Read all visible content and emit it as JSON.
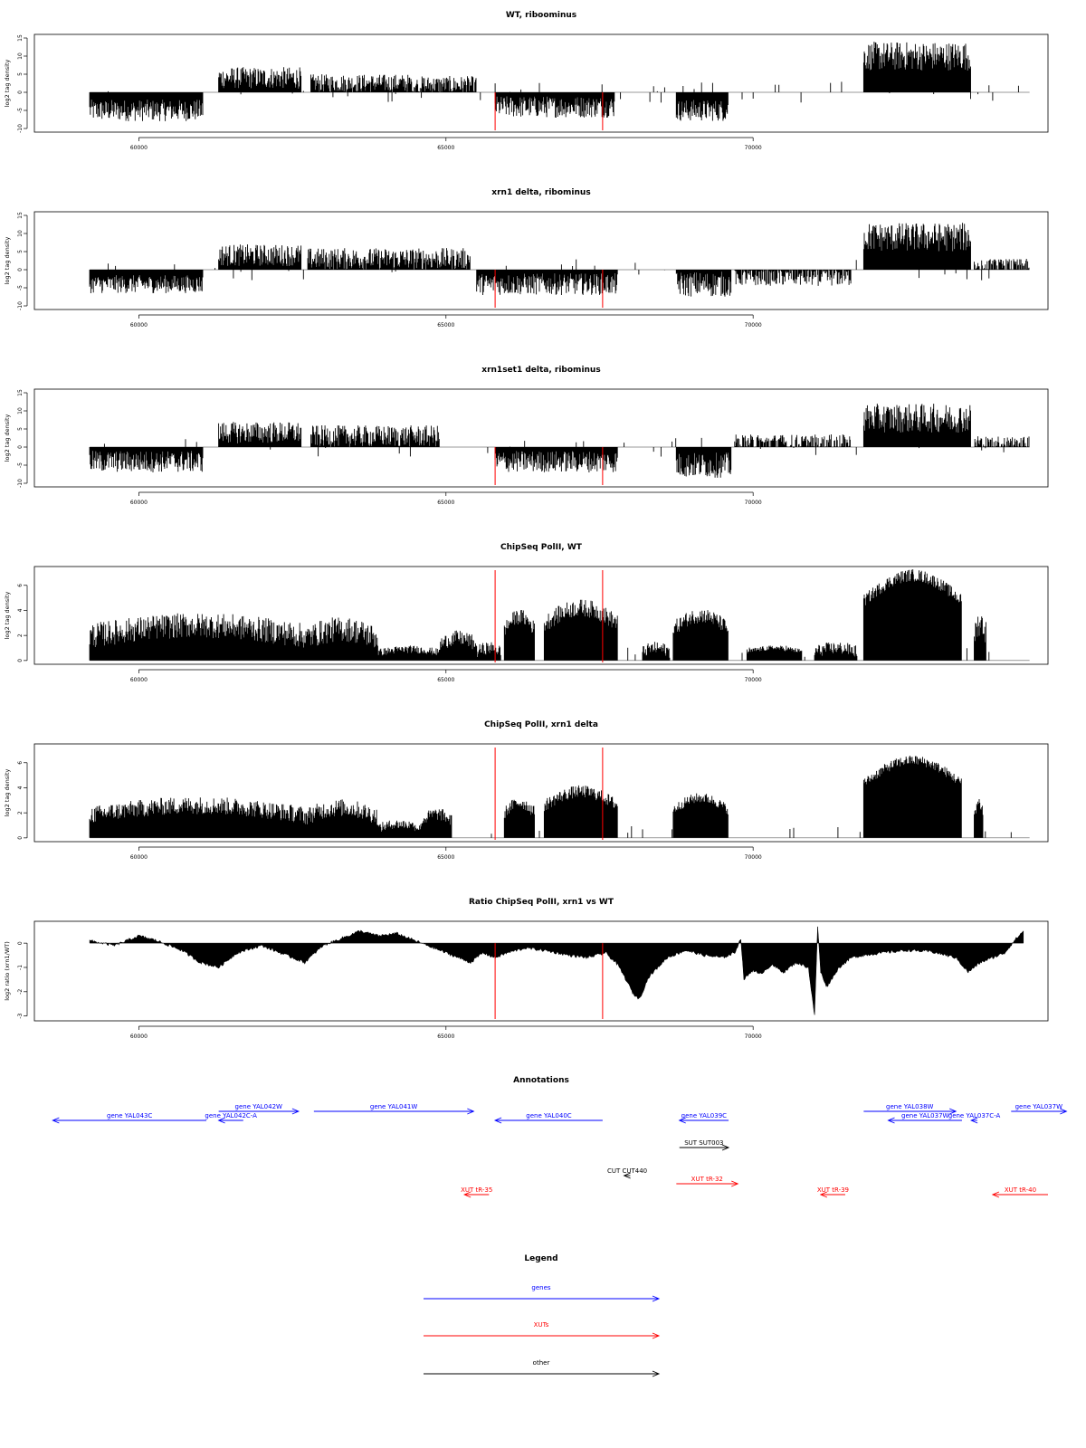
{
  "colors": {
    "signal": "#000000",
    "marker": "#ff0000",
    "genes": "#0000ff",
    "xuts": "#ff0000",
    "other": "#000000"
  },
  "chart_data": [
    {
      "type": "bar",
      "title": "WT, riboominus",
      "ylabel": "log2 tag density",
      "ylim": [
        -11,
        16
      ],
      "yticks": [
        -10,
        -5,
        0,
        5,
        10,
        15
      ],
      "xlim": [
        58300,
        74800
      ],
      "xticks": [
        60000,
        65000,
        70000
      ],
      "xtick_labels": [
        "60000",
        "65000",
        "70000"
      ],
      "markers": [
        65800,
        67550
      ],
      "segments": [
        {
          "x": [
            59200,
            61050
          ],
          "y": -5,
          "amp": 3
        },
        {
          "x": [
            61300,
            62650
          ],
          "y": 4,
          "amp": 3
        },
        {
          "x": [
            62800,
            64450
          ],
          "y": 2.5,
          "amp": 2.5
        },
        {
          "x": [
            64450,
            65500
          ],
          "y": 2,
          "amp": 2.5
        },
        {
          "x": [
            65800,
            67750
          ],
          "y": -4,
          "amp": 3
        },
        {
          "x": [
            68750,
            69600
          ],
          "y": -5,
          "amp": 3
        },
        {
          "x": [
            71800,
            73550
          ],
          "y": 10,
          "amp": 4
        }
      ]
    },
    {
      "type": "bar",
      "title": "xrn1 delta, ribominus",
      "ylabel": "log2 tag density",
      "ylim": [
        -11,
        16
      ],
      "yticks": [
        -10,
        -5,
        0,
        5,
        10,
        15
      ],
      "xlim": [
        58300,
        74800
      ],
      "xticks": [
        60000,
        65000,
        70000
      ],
      "xtick_labels": [
        "60000",
        "65000",
        "70000"
      ],
      "markers": [
        65800,
        67550
      ],
      "segments": [
        {
          "x": [
            59200,
            61050
          ],
          "y": -4,
          "amp": 2.5
        },
        {
          "x": [
            61300,
            62650
          ],
          "y": 4,
          "amp": 3
        },
        {
          "x": [
            62750,
            65400
          ],
          "y": 3,
          "amp": 3
        },
        {
          "x": [
            65500,
            67800
          ],
          "y": -4,
          "amp": 3
        },
        {
          "x": [
            68750,
            69650
          ],
          "y": -4,
          "amp": 3.5
        },
        {
          "x": [
            69700,
            71600
          ],
          "y": -2,
          "amp": 2.5
        },
        {
          "x": [
            71800,
            73550
          ],
          "y": 9,
          "amp": 4
        },
        {
          "x": [
            73600,
            74500
          ],
          "y": 1,
          "amp": 2
        }
      ]
    },
    {
      "type": "bar",
      "title": "xrn1set1 delta, ribominus",
      "ylabel": "log2 tag density",
      "ylim": [
        -11,
        16
      ],
      "yticks": [
        -10,
        -5,
        0,
        5,
        10,
        15
      ],
      "xlim": [
        58300,
        74800
      ],
      "xticks": [
        60000,
        65000,
        70000
      ],
      "xtick_labels": [
        "60000",
        "65000",
        "70000"
      ],
      "markers": [
        65800,
        67550
      ],
      "segments": [
        {
          "x": [
            59200,
            61050
          ],
          "y": -4,
          "amp": 3
        },
        {
          "x": [
            61300,
            62650
          ],
          "y": 4,
          "amp": 3
        },
        {
          "x": [
            62800,
            64900
          ],
          "y": 3,
          "amp": 3
        },
        {
          "x": [
            65800,
            67800
          ],
          "y": -4,
          "amp": 3
        },
        {
          "x": [
            68750,
            69650
          ],
          "y": -5,
          "amp": 3.5
        },
        {
          "x": [
            69700,
            71600
          ],
          "y": 1,
          "amp": 2.5
        },
        {
          "x": [
            71800,
            73550
          ],
          "y": 8,
          "amp": 4
        },
        {
          "x": [
            73600,
            74500
          ],
          "y": 1,
          "amp": 2
        }
      ]
    },
    {
      "type": "bar",
      "title": "ChipSeq PolII, WT",
      "ylabel": "log2 tag density",
      "ylim": [
        -0.3,
        7.5
      ],
      "yticks": [
        0,
        2,
        4,
        6
      ],
      "xlim": [
        58300,
        74800
      ],
      "xticks": [
        60000,
        65000,
        70000
      ],
      "xtick_labels": [
        "60000",
        "65000",
        "70000"
      ],
      "markers": [
        65800,
        67550
      ],
      "segments": [
        {
          "x": [
            59200,
            62700
          ],
          "y": 2.8,
          "amp": 1
        },
        {
          "x": [
            62700,
            63900
          ],
          "y": 2.5,
          "amp": 1
        },
        {
          "x": [
            63900,
            64900
          ],
          "y": 0.9,
          "amp": 0.3
        },
        {
          "x": [
            64900,
            65500
          ],
          "y": 1.8,
          "amp": 0.6
        },
        {
          "x": [
            65500,
            65900
          ],
          "y": 1,
          "amp": 0.5
        },
        {
          "x": [
            65950,
            66450
          ],
          "y": 3.5,
          "amp": 0.6
        },
        {
          "x": [
            66600,
            67800
          ],
          "y": 4.2,
          "amp": 0.7
        },
        {
          "x": [
            68200,
            68650
          ],
          "y": 1,
          "amp": 0.5
        },
        {
          "x": [
            68700,
            69600
          ],
          "y": 3.6,
          "amp": 0.6
        },
        {
          "x": [
            69900,
            70800
          ],
          "y": 1,
          "amp": 0.2
        },
        {
          "x": [
            71000,
            71700
          ],
          "y": 1,
          "amp": 0.5
        },
        {
          "x": [
            71800,
            73400
          ],
          "y": 6.8,
          "amp": 0.5
        },
        {
          "x": [
            73600,
            73800
          ],
          "y": 3,
          "amp": 1
        }
      ]
    },
    {
      "type": "bar",
      "title": "ChipSeq PolII, xrn1 delta",
      "ylabel": "log2 tag density",
      "ylim": [
        -0.3,
        7.5
      ],
      "yticks": [
        0,
        2,
        4,
        6
      ],
      "xlim": [
        58300,
        74800
      ],
      "xticks": [
        60000,
        65000,
        70000
      ],
      "xtick_labels": [
        "60000",
        "65000",
        "70000"
      ],
      "markers": [
        65800,
        67550
      ],
      "segments": [
        {
          "x": [
            59200,
            62700
          ],
          "y": 2.6,
          "amp": 0.7
        },
        {
          "x": [
            62700,
            63900
          ],
          "y": 2.4,
          "amp": 0.7
        },
        {
          "x": [
            63900,
            64600
          ],
          "y": 1.1,
          "amp": 0.4
        },
        {
          "x": [
            64600,
            65100
          ],
          "y": 1.9,
          "amp": 0.5
        },
        {
          "x": [
            65950,
            66450
          ],
          "y": 2.8,
          "amp": 0.5
        },
        {
          "x": [
            66600,
            67800
          ],
          "y": 3.7,
          "amp": 0.5
        },
        {
          "x": [
            68700,
            69600
          ],
          "y": 3.2,
          "amp": 0.4
        },
        {
          "x": [
            71800,
            73400
          ],
          "y": 6.2,
          "amp": 0.4
        },
        {
          "x": [
            73600,
            73750
          ],
          "y": 2.8,
          "amp": 0.5
        }
      ]
    },
    {
      "type": "area",
      "title": "Ratio ChipSeq PolII, xrn1 vs WT",
      "ylabel": "log2 ratio (xrn1/WT)",
      "ylim": [
        -3.2,
        0.9
      ],
      "yticks": [
        -3,
        -2,
        -1,
        0
      ],
      "xlim": [
        58300,
        74800
      ],
      "xticks": [
        60000,
        65000,
        70000
      ],
      "xtick_labels": [
        "60000",
        "65000",
        "70000"
      ],
      "markers": [
        65800,
        67550
      ],
      "x": [
        59200,
        59600,
        60000,
        60300,
        60700,
        61000,
        61300,
        61600,
        62000,
        62300,
        62700,
        63000,
        63300,
        63600,
        63900,
        64200,
        64500,
        64800,
        65100,
        65400,
        65600,
        65800,
        66000,
        66300,
        66600,
        67000,
        67300,
        67600,
        67800,
        67950,
        68050,
        68150,
        68300,
        68600,
        68900,
        69200,
        69500,
        69700,
        69800,
        69850,
        70000,
        70100,
        70300,
        70500,
        70700,
        70900,
        71000,
        71050,
        71100,
        71200,
        71400,
        71600,
        71800,
        72100,
        72500,
        72900,
        73300,
        73500,
        73700,
        73900,
        74100,
        74250,
        74400
      ],
      "y": [
        0.1,
        -0.1,
        0.3,
        0.1,
        -0.3,
        -0.8,
        -1,
        -0.4,
        -0.1,
        -0.4,
        -0.8,
        -0.1,
        0.2,
        0.5,
        0.3,
        0.4,
        0.1,
        -0.2,
        -0.5,
        -0.8,
        -0.4,
        -0.6,
        -0.4,
        -0.2,
        -0.3,
        -0.5,
        -0.6,
        -0.4,
        -0.9,
        -1.6,
        -2.1,
        -2.3,
        -1.4,
        -0.6,
        -0.3,
        -0.5,
        -0.6,
        -0.4,
        0.2,
        -1.5,
        -1.1,
        -1.3,
        -0.9,
        -1.2,
        -0.8,
        -1.0,
        -3.0,
        0.7,
        -1.2,
        -1.8,
        -1.0,
        -0.6,
        -0.5,
        -0.4,
        -0.3,
        -0.35,
        -0.6,
        -1.2,
        -0.8,
        -0.6,
        -0.4,
        0.1,
        0.5
      ]
    }
  ],
  "annotations": {
    "title": "Annotations",
    "items": [
      {
        "label": "gene YAL043C",
        "kind": "genes",
        "from": 61100,
        "to": 58600,
        "row": 1
      },
      {
        "label": "gene YAL042W",
        "kind": "genes",
        "from": 61300,
        "to": 62600,
        "row": 0
      },
      {
        "label": "gene YAL042C-A",
        "kind": "genes",
        "from": 61700,
        "to": 61300,
        "row": 1
      },
      {
        "label": "gene YAL041W",
        "kind": "genes",
        "from": 62850,
        "to": 65450,
        "row": 0
      },
      {
        "label": "gene YAL040C",
        "kind": "genes",
        "from": 67550,
        "to": 65800,
        "row": 1
      },
      {
        "label": "gene YAL039C",
        "kind": "genes",
        "from": 69600,
        "to": 68800,
        "row": 1
      },
      {
        "label": "gene YAL038W",
        "kind": "genes",
        "from": 71800,
        "to": 73300,
        "row": 0
      },
      {
        "label": "gene YAL037W",
        "kind": "genes",
        "from": 73400,
        "to": 72200,
        "row": 1
      },
      {
        "label": "gene YAL037C-A",
        "kind": "genes",
        "from": 73650,
        "to": 73550,
        "row": 1
      },
      {
        "label": "gene YAL037W",
        "kind": "genes",
        "from": 74200,
        "to": 75100,
        "row": 0
      },
      {
        "label": "SUT SUT003",
        "kind": "other",
        "from": 68800,
        "to": 69600,
        "row": 2
      },
      {
        "label": "CUT CUT440",
        "kind": "other",
        "from": 68000,
        "to": 67900,
        "row": 3
      },
      {
        "label": "XUT tR-32",
        "kind": "xuts",
        "from": 68750,
        "to": 69750,
        "row": 4
      },
      {
        "label": "XUT tR-35",
        "kind": "xuts",
        "from": 65700,
        "to": 65300,
        "row": 5
      },
      {
        "label": "XUT tR-39",
        "kind": "xuts",
        "from": 71500,
        "to": 71100,
        "row": 5
      },
      {
        "label": "XUT tR-40",
        "kind": "xuts",
        "from": 74800,
        "to": 73900,
        "row": 5
      }
    ]
  },
  "legend": {
    "title": "Legend",
    "entries": [
      {
        "label": "genes",
        "kind": "genes"
      },
      {
        "label": "XUTs",
        "kind": "xuts"
      },
      {
        "label": "other",
        "kind": "other"
      }
    ]
  }
}
